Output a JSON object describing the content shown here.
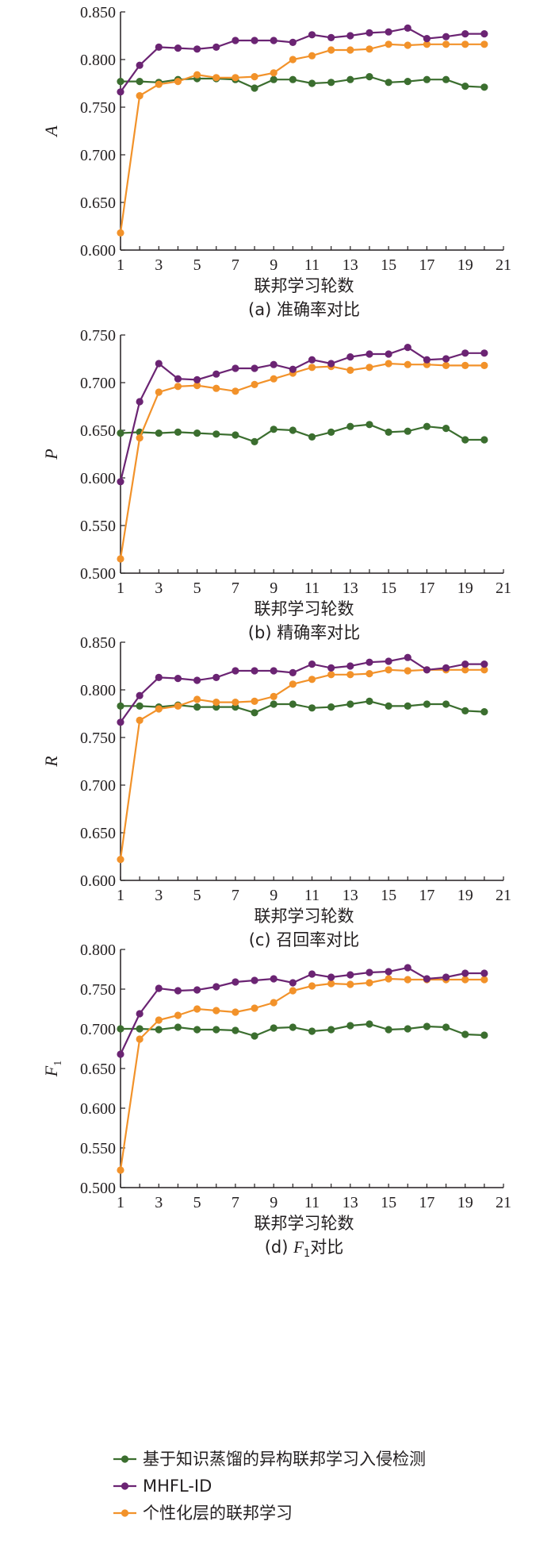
{
  "legend": [
    {
      "label": "基于知识蒸馏的异构联邦学习入侵检测",
      "color": "#3b6e2f"
    },
    {
      "label": "MHFL-ID",
      "color": "#6b2473"
    },
    {
      "label": "个性化层的联邦学习",
      "color": "#f2922a"
    }
  ],
  "chart_data": [
    {
      "type": "line",
      "ylabel": "A",
      "ylabel_sub": "",
      "xlabel": "联邦学习轮数",
      "caption": "(a) 准确率对比",
      "caption_sub": "",
      "caption_tail": "",
      "xlim": [
        1,
        21
      ],
      "x_ticks": [
        "1",
        "3",
        "5",
        "7",
        "9",
        "11",
        "13",
        "15",
        "17",
        "19",
        "21"
      ],
      "ylim": [
        0.6,
        0.85
      ],
      "y_ticks": [
        "0.600",
        "0.650",
        "0.700",
        "0.750",
        "0.800",
        "0.850"
      ],
      "x": [
        1,
        2,
        3,
        4,
        5,
        6,
        7,
        8,
        9,
        10,
        11,
        12,
        13,
        14,
        15,
        16,
        17,
        18,
        19,
        20
      ],
      "series": [
        {
          "name": "基于知识蒸馏的异构联邦学习入侵检测",
          "values": [
            0.777,
            0.777,
            0.776,
            0.779,
            0.78,
            0.78,
            0.779,
            0.77,
            0.779,
            0.779,
            0.775,
            0.776,
            0.779,
            0.782,
            0.776,
            0.777,
            0.779,
            0.779,
            0.772,
            0.771
          ]
        },
        {
          "name": "MHFL-ID",
          "values": [
            0.766,
            0.794,
            0.813,
            0.812,
            0.811,
            0.813,
            0.82,
            0.82,
            0.82,
            0.818,
            0.826,
            0.823,
            0.825,
            0.828,
            0.829,
            0.833,
            0.822,
            0.824,
            0.827,
            0.827
          ]
        },
        {
          "name": "个性化层的联邦学习",
          "values": [
            0.618,
            0.762,
            0.774,
            0.777,
            0.784,
            0.781,
            0.781,
            0.782,
            0.786,
            0.8,
            0.804,
            0.81,
            0.81,
            0.811,
            0.816,
            0.815,
            0.816,
            0.816,
            0.816,
            0.816
          ]
        }
      ]
    },
    {
      "type": "line",
      "ylabel": "P",
      "ylabel_sub": "",
      "xlabel": "联邦学习轮数",
      "caption": "(b) 精确率对比",
      "caption_sub": "",
      "caption_tail": "",
      "xlim": [
        1,
        21
      ],
      "x_ticks": [
        "1",
        "3",
        "5",
        "7",
        "9",
        "11",
        "13",
        "15",
        "17",
        "19",
        "21"
      ],
      "ylim": [
        0.5,
        0.75
      ],
      "y_ticks": [
        "0.500",
        "0.550",
        "0.600",
        "0.650",
        "0.700",
        "0.750"
      ],
      "x": [
        1,
        2,
        3,
        4,
        5,
        6,
        7,
        8,
        9,
        10,
        11,
        12,
        13,
        14,
        15,
        16,
        17,
        18,
        19,
        20
      ],
      "series": [
        {
          "name": "基于知识蒸馏的异构联邦学习入侵检测",
          "values": [
            0.647,
            0.648,
            0.647,
            0.648,
            0.647,
            0.646,
            0.645,
            0.638,
            0.651,
            0.65,
            0.643,
            0.648,
            0.654,
            0.656,
            0.648,
            0.649,
            0.654,
            0.652,
            0.64,
            0.64
          ]
        },
        {
          "name": "MHFL-ID",
          "values": [
            0.596,
            0.68,
            0.72,
            0.704,
            0.703,
            0.709,
            0.715,
            0.715,
            0.719,
            0.714,
            0.724,
            0.72,
            0.727,
            0.73,
            0.73,
            0.737,
            0.724,
            0.725,
            0.731,
            0.731
          ]
        },
        {
          "name": "个性化层的联邦学习",
          "values": [
            0.515,
            0.642,
            0.69,
            0.696,
            0.697,
            0.694,
            0.691,
            0.698,
            0.704,
            0.71,
            0.716,
            0.717,
            0.713,
            0.716,
            0.72,
            0.719,
            0.719,
            0.718,
            0.718,
            0.718
          ]
        }
      ]
    },
    {
      "type": "line",
      "ylabel": "R",
      "ylabel_sub": "",
      "xlabel": "联邦学习轮数",
      "caption": "(c) 召回率对比",
      "caption_sub": "",
      "caption_tail": "",
      "xlim": [
        1,
        21
      ],
      "x_ticks": [
        "1",
        "3",
        "5",
        "7",
        "9",
        "11",
        "13",
        "15",
        "17",
        "19",
        "21"
      ],
      "ylim": [
        0.6,
        0.85
      ],
      "y_ticks": [
        "0.600",
        "0.650",
        "0.700",
        "0.750",
        "0.800",
        "0.850"
      ],
      "x": [
        1,
        2,
        3,
        4,
        5,
        6,
        7,
        8,
        9,
        10,
        11,
        12,
        13,
        14,
        15,
        16,
        17,
        18,
        19,
        20
      ],
      "series": [
        {
          "name": "基于知识蒸馏的异构联邦学习入侵检测",
          "values": [
            0.783,
            0.783,
            0.782,
            0.784,
            0.782,
            0.782,
            0.782,
            0.776,
            0.785,
            0.785,
            0.781,
            0.782,
            0.785,
            0.788,
            0.783,
            0.783,
            0.785,
            0.785,
            0.778,
            0.777
          ]
        },
        {
          "name": "MHFL-ID",
          "values": [
            0.766,
            0.794,
            0.813,
            0.812,
            0.81,
            0.813,
            0.82,
            0.82,
            0.82,
            0.818,
            0.827,
            0.823,
            0.825,
            0.829,
            0.83,
            0.834,
            0.821,
            0.823,
            0.827,
            0.827
          ]
        },
        {
          "name": "个性化层的联邦学习",
          "values": [
            0.622,
            0.768,
            0.78,
            0.783,
            0.79,
            0.787,
            0.787,
            0.788,
            0.793,
            0.806,
            0.811,
            0.816,
            0.816,
            0.817,
            0.821,
            0.82,
            0.821,
            0.821,
            0.821,
            0.821
          ]
        }
      ]
    },
    {
      "type": "line",
      "ylabel": "F",
      "ylabel_sub": "1",
      "xlabel": "联邦学习轮数",
      "caption": "(d) ",
      "caption_sub": "1",
      "caption_tail": "对比",
      "caption_var": "F",
      "xlim": [
        1,
        21
      ],
      "x_ticks": [
        "1",
        "3",
        "5",
        "7",
        "9",
        "11",
        "13",
        "15",
        "17",
        "19",
        "21"
      ],
      "ylim": [
        0.5,
        0.8
      ],
      "y_ticks": [
        "0.500",
        "0.550",
        "0.600",
        "0.650",
        "0.700",
        "0.750",
        "0.800"
      ],
      "x": [
        1,
        2,
        3,
        4,
        5,
        6,
        7,
        8,
        9,
        10,
        11,
        12,
        13,
        14,
        15,
        16,
        17,
        18,
        19,
        20
      ],
      "series": [
        {
          "name": "基于知识蒸馏的异构联邦学习入侵检测",
          "values": [
            0.7,
            0.7,
            0.699,
            0.702,
            0.699,
            0.699,
            0.698,
            0.691,
            0.701,
            0.702,
            0.697,
            0.699,
            0.704,
            0.706,
            0.699,
            0.7,
            0.703,
            0.702,
            0.693,
            0.692
          ]
        },
        {
          "name": "MHFL-ID",
          "values": [
            0.668,
            0.719,
            0.751,
            0.748,
            0.749,
            0.753,
            0.759,
            0.761,
            0.763,
            0.758,
            0.769,
            0.765,
            0.768,
            0.771,
            0.772,
            0.777,
            0.763,
            0.765,
            0.77,
            0.77
          ]
        },
        {
          "name": "个性化层的联邦学习",
          "values": [
            0.522,
            0.687,
            0.711,
            0.717,
            0.725,
            0.723,
            0.721,
            0.726,
            0.733,
            0.748,
            0.754,
            0.757,
            0.756,
            0.758,
            0.763,
            0.762,
            0.762,
            0.762,
            0.762,
            0.762
          ]
        }
      ]
    }
  ]
}
